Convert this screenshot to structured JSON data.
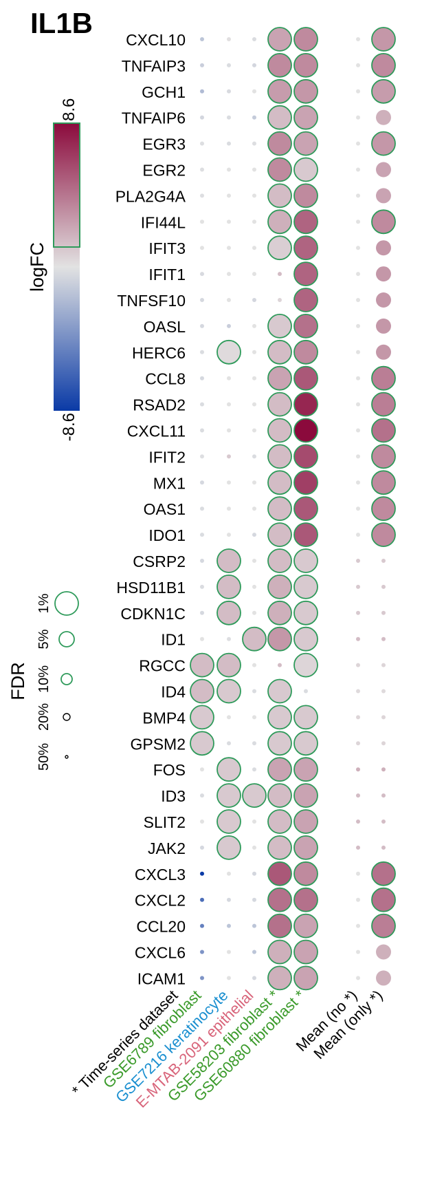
{
  "chart_data": {
    "type": "dot_matrix",
    "title": "IL1B",
    "genes": [
      "CXCL10",
      "TNFAIP3",
      "GCH1",
      "TNFAIP6",
      "EGR3",
      "EGR2",
      "PLA2G4A",
      "IFI44L",
      "IFIT3",
      "IFIT1",
      "TNFSF10",
      "OASL",
      "HERC6",
      "CCL8",
      "RSAD2",
      "CXCL11",
      "IFIT2",
      "MX1",
      "OAS1",
      "IDO1",
      "CSRP2",
      "HSD11B1",
      "CDKN1C",
      "ID1",
      "RGCC",
      "ID4",
      "BMP4",
      "GPSM2",
      "FOS",
      "ID3",
      "SLIT2",
      "JAK2",
      "CXCL3",
      "CXCL2",
      "CCL20",
      "CXCL6",
      "ICAM1"
    ],
    "columns": [
      {
        "label": "* Time-series dataset",
        "color": "#000000"
      },
      {
        "label": "GSE6789 fibroblast",
        "color": "#3a9a2a"
      },
      {
        "label": "GSE7216 keratinocyte",
        "color": "#1a8fd0"
      },
      {
        "label": "E-MTAB-2091 epithelial",
        "color": "#d8647a"
      },
      {
        "label": "GSE58203 fibroblast *",
        "color": "#3a9a2a"
      },
      {
        "label": "GSE60880 fibroblast *",
        "color": "#3a9a2a"
      },
      {
        "label": "Mean (no *)",
        "color": "#000000"
      },
      {
        "label": "Mean (only *)",
        "color": "#000000"
      }
    ],
    "data_columns": [
      "GSE6789 fibroblast",
      "GSE7216 keratinocyte",
      "E-MTAB-2091 epithelial",
      "GSE58203 fibroblast *",
      "GSE60880 fibroblast *",
      "Mean (no *)",
      "Mean (only *)"
    ],
    "logFC": [
      [
        -1.5,
        0.1,
        -0.3,
        2.5,
        3.5,
        0,
        3.0
      ],
      [
        -1.0,
        -0.3,
        -0.6,
        3.5,
        3.5,
        0,
        3.5
      ],
      [
        -2.0,
        -0.4,
        0,
        2.8,
        3.0,
        0,
        2.8
      ],
      [
        -0.6,
        -0.3,
        -1.2,
        1.5,
        2.5,
        0,
        2.0
      ],
      [
        -0.2,
        -0.3,
        -0.2,
        3.5,
        2.5,
        0,
        3.0
      ],
      [
        -0.2,
        0,
        0,
        3.5,
        1.0,
        0,
        2.5
      ],
      [
        -0.2,
        0,
        0,
        1.5,
        3.5,
        0,
        2.5
      ],
      [
        0,
        0,
        0,
        2.0,
        5.0,
        0,
        3.5
      ],
      [
        0,
        0,
        0,
        0.8,
        5.0,
        0,
        3.0
      ],
      [
        -0.4,
        0,
        0,
        1.5,
        5.0,
        0,
        3.0
      ],
      [
        -0.5,
        0,
        -0.6,
        0.5,
        5.0,
        0,
        3.0
      ],
      [
        -0.5,
        -1.0,
        0,
        1.0,
        4.5,
        0,
        3.0
      ],
      [
        -0.3,
        0.3,
        0,
        1.5,
        3.5,
        0,
        3.0
      ],
      [
        -0.5,
        0,
        0,
        2.5,
        5.5,
        0,
        4.0
      ],
      [
        -0.3,
        0,
        0,
        1.5,
        7.5,
        0,
        4.0
      ],
      [
        -0.3,
        0,
        0,
        1.5,
        8.6,
        0,
        4.5
      ],
      [
        -0.2,
        1.0,
        -0.3,
        1.5,
        6.0,
        0,
        3.5
      ],
      [
        -0.5,
        0,
        0,
        1.5,
        6.5,
        0,
        3.5
      ],
      [
        -0.3,
        0,
        0,
        1.5,
        5.5,
        0,
        3.5
      ],
      [
        -0.3,
        0,
        -0.5,
        1.5,
        5.5,
        0,
        3.5
      ],
      [
        -0.5,
        1.5,
        0,
        1.5,
        1.0,
        1.0,
        1.0
      ],
      [
        -0.3,
        1.5,
        0,
        2.0,
        1.0,
        1.0,
        1.0
      ],
      [
        -0.5,
        1.5,
        0,
        2.0,
        1.0,
        1.0,
        1.0
      ],
      [
        0,
        -0.2,
        1.5,
        3.0,
        1.0,
        1.5,
        1.5
      ],
      [
        1.5,
        1.5,
        0,
        1.5,
        0.5,
        0.5,
        0.5
      ],
      [
        1.5,
        1.0,
        -0.3,
        1.0,
        -0.3,
        0.3,
        0.3
      ],
      [
        1.0,
        0,
        0,
        1.0,
        1.0,
        0.5,
        0.5
      ],
      [
        1.0,
        -0.3,
        -0.3,
        1.0,
        1.0,
        0.5,
        0.5
      ],
      [
        0,
        1.0,
        -0.3,
        2.5,
        2.5,
        2.0,
        2.0
      ],
      [
        -0.3,
        1.0,
        1.0,
        1.5,
        2.5,
        1.5,
        1.5
      ],
      [
        0,
        1.0,
        0,
        1.5,
        2.5,
        1.5,
        1.5
      ],
      [
        -0.5,
        1.0,
        0,
        1.5,
        2.5,
        1.5,
        1.5
      ],
      [
        -8.6,
        0,
        -0.6,
        5.5,
        3.5,
        0,
        4.5
      ],
      [
        -6.0,
        -0.5,
        -0.5,
        4.5,
        4.5,
        0,
        4.5
      ],
      [
        -5.0,
        -1.5,
        -1.5,
        4.5,
        2.5,
        0,
        4.0
      ],
      [
        -4.0,
        0,
        -1.5,
        2.0,
        2.5,
        0,
        2.0
      ],
      [
        -4.0,
        0,
        -0.5,
        2.0,
        2.5,
        0,
        2.0
      ]
    ],
    "significance_percent": [
      [
        50,
        50,
        50,
        1,
        1,
        50,
        1
      ],
      [
        50,
        50,
        50,
        1,
        1,
        50,
        1
      ],
      [
        50,
        50,
        50,
        1,
        1,
        50,
        1
      ],
      [
        50,
        50,
        50,
        1,
        1,
        50,
        5
      ],
      [
        50,
        50,
        50,
        1,
        1,
        50,
        1
      ],
      [
        50,
        50,
        50,
        1,
        1,
        50,
        5
      ],
      [
        50,
        50,
        50,
        1,
        1,
        50,
        5
      ],
      [
        50,
        50,
        50,
        1,
        1,
        50,
        1
      ],
      [
        50,
        50,
        50,
        1,
        1,
        50,
        5
      ],
      [
        50,
        50,
        50,
        50,
        1,
        50,
        5
      ],
      [
        50,
        50,
        50,
        50,
        1,
        50,
        5
      ],
      [
        50,
        50,
        50,
        1,
        1,
        50,
        5
      ],
      [
        50,
        1,
        50,
        1,
        1,
        50,
        5
      ],
      [
        50,
        50,
        50,
        1,
        1,
        50,
        1
      ],
      [
        50,
        50,
        50,
        1,
        1,
        50,
        1
      ],
      [
        50,
        50,
        50,
        1,
        1,
        50,
        1
      ],
      [
        50,
        50,
        50,
        1,
        1,
        50,
        1
      ],
      [
        50,
        50,
        50,
        1,
        1,
        50,
        1
      ],
      [
        50,
        50,
        50,
        1,
        1,
        50,
        1
      ],
      [
        50,
        50,
        50,
        1,
        1,
        50,
        1
      ],
      [
        50,
        1,
        50,
        1,
        1,
        50,
        50
      ],
      [
        50,
        1,
        50,
        1,
        1,
        50,
        50
      ],
      [
        50,
        1,
        50,
        1,
        1,
        50,
        50
      ],
      [
        50,
        50,
        1,
        1,
        1,
        50,
        50
      ],
      [
        1,
        1,
        50,
        50,
        1,
        50,
        50
      ],
      [
        1,
        1,
        50,
        1,
        50,
        50,
        50
      ],
      [
        1,
        50,
        50,
        1,
        1,
        50,
        50
      ],
      [
        1,
        50,
        50,
        1,
        1,
        50,
        50
      ],
      [
        50,
        1,
        50,
        1,
        1,
        50,
        50
      ],
      [
        50,
        1,
        1,
        1,
        1,
        50,
        50
      ],
      [
        50,
        1,
        50,
        1,
        1,
        50,
        50
      ],
      [
        50,
        1,
        50,
        1,
        1,
        50,
        50
      ],
      [
        50,
        50,
        50,
        1,
        1,
        50,
        1
      ],
      [
        50,
        50,
        50,
        1,
        1,
        50,
        1
      ],
      [
        50,
        50,
        50,
        1,
        1,
        50,
        1
      ],
      [
        50,
        50,
        50,
        1,
        1,
        50,
        5
      ],
      [
        50,
        50,
        50,
        1,
        1,
        50,
        5
      ]
    ],
    "fdr_legend": {
      "title": "FDR",
      "levels": [
        "1%",
        "5%",
        "10%",
        "20%",
        "50%"
      ]
    },
    "color_legend": {
      "title": "logFC",
      "max_label": "8.6",
      "min_label": "-8.6",
      "max": 8.6,
      "min": -8.6
    },
    "colors": {
      "positive": "#8b0a3c",
      "neutral": "#e2e2e2",
      "negative": "#0a3aa6",
      "significant_outline": "#2e9a5a"
    }
  }
}
